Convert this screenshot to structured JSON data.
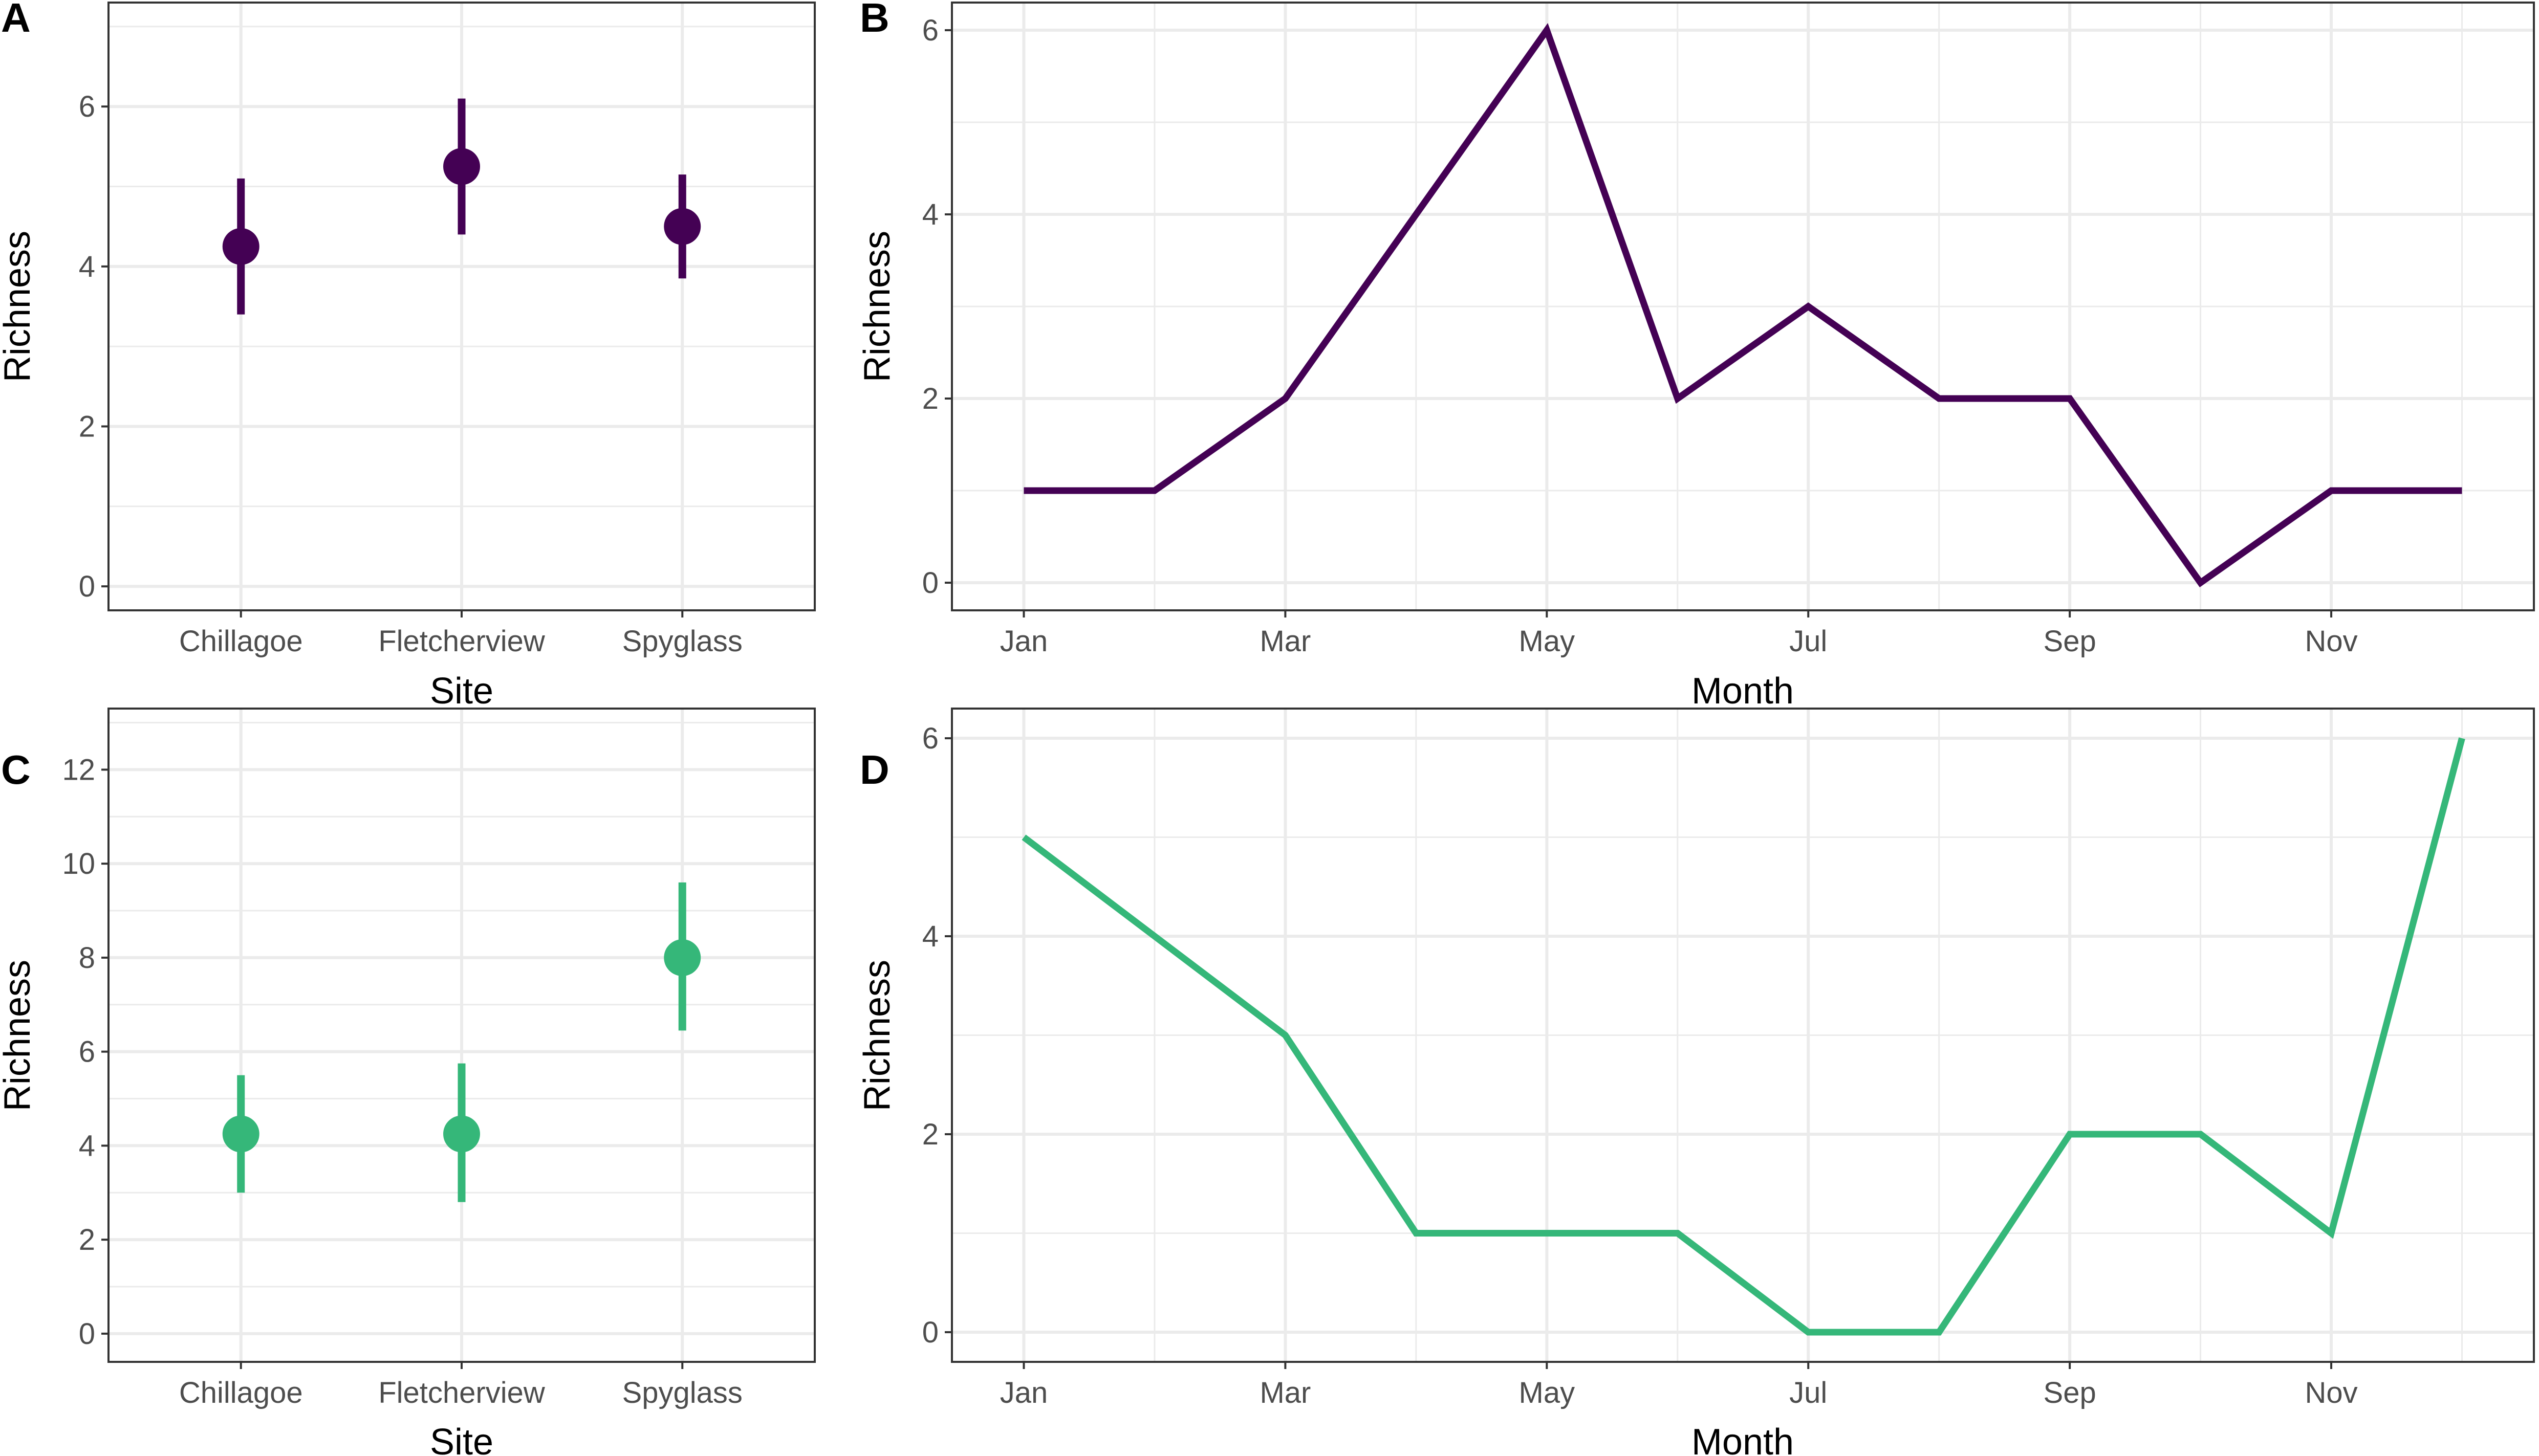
{
  "chart_data": [
    {
      "panel": "A",
      "type": "scatter",
      "subtype": "point-range",
      "title": "",
      "xlabel": "Site",
      "ylabel": "Richness",
      "categories": [
        "Chillagoe",
        "Fletcherview",
        "Spyglass"
      ],
      "values": [
        4.25,
        5.25,
        4.5
      ],
      "lower": [
        3.4,
        4.4,
        3.85
      ],
      "upper": [
        5.1,
        6.1,
        5.15
      ],
      "ylim": [
        -0.3,
        7.3
      ],
      "yticks": [
        0,
        2,
        4,
        6
      ],
      "color": "#440154",
      "grid": true
    },
    {
      "panel": "B",
      "type": "line",
      "title": "",
      "xlabel": "Month",
      "ylabel": "Richness",
      "x": [
        1,
        2,
        3,
        4,
        5,
        6,
        7,
        8,
        9,
        10,
        11,
        12
      ],
      "x_tick_positions": [
        1,
        3,
        5,
        7,
        9,
        11
      ],
      "x_tick_labels": [
        "Jan",
        "Mar",
        "May",
        "Jul",
        "Sep",
        "Nov"
      ],
      "values": [
        1,
        1,
        2,
        4,
        6,
        2,
        3,
        2,
        2,
        0,
        1,
        1
      ],
      "xlim": [
        0.45,
        12.55
      ],
      "ylim": [
        -0.3,
        6.3
      ],
      "yticks": [
        0,
        2,
        4,
        6
      ],
      "color": "#440154",
      "grid": true
    },
    {
      "panel": "C",
      "type": "scatter",
      "subtype": "point-range",
      "title": "",
      "xlabel": "Site",
      "ylabel": "Richness",
      "categories": [
        "Chillagoe",
        "Fletcherview",
        "Spyglass"
      ],
      "values": [
        4.25,
        4.25,
        8.0
      ],
      "lower": [
        3.0,
        2.8,
        6.45
      ],
      "upper": [
        5.5,
        5.75,
        9.6
      ],
      "ylim": [
        -0.6,
        13.3
      ],
      "yticks": [
        0,
        2,
        4,
        6,
        8,
        10,
        12
      ],
      "color": "#35b779",
      "grid": true
    },
    {
      "panel": "D",
      "type": "line",
      "title": "",
      "xlabel": "Month",
      "ylabel": "Richness",
      "x": [
        1,
        2,
        3,
        4,
        5,
        6,
        7,
        8,
        9,
        10,
        11,
        12
      ],
      "x_tick_positions": [
        1,
        3,
        5,
        7,
        9,
        11
      ],
      "x_tick_labels": [
        "Jan",
        "Mar",
        "May",
        "Jul",
        "Sep",
        "Nov"
      ],
      "values": [
        5,
        4,
        3,
        1,
        1,
        1,
        0,
        0,
        2,
        2,
        1,
        6
      ],
      "xlim": [
        0.45,
        12.55
      ],
      "ylim": [
        -0.3,
        6.3
      ],
      "yticks": [
        0,
        2,
        4,
        6
      ],
      "color": "#35b779",
      "grid": true
    }
  ]
}
